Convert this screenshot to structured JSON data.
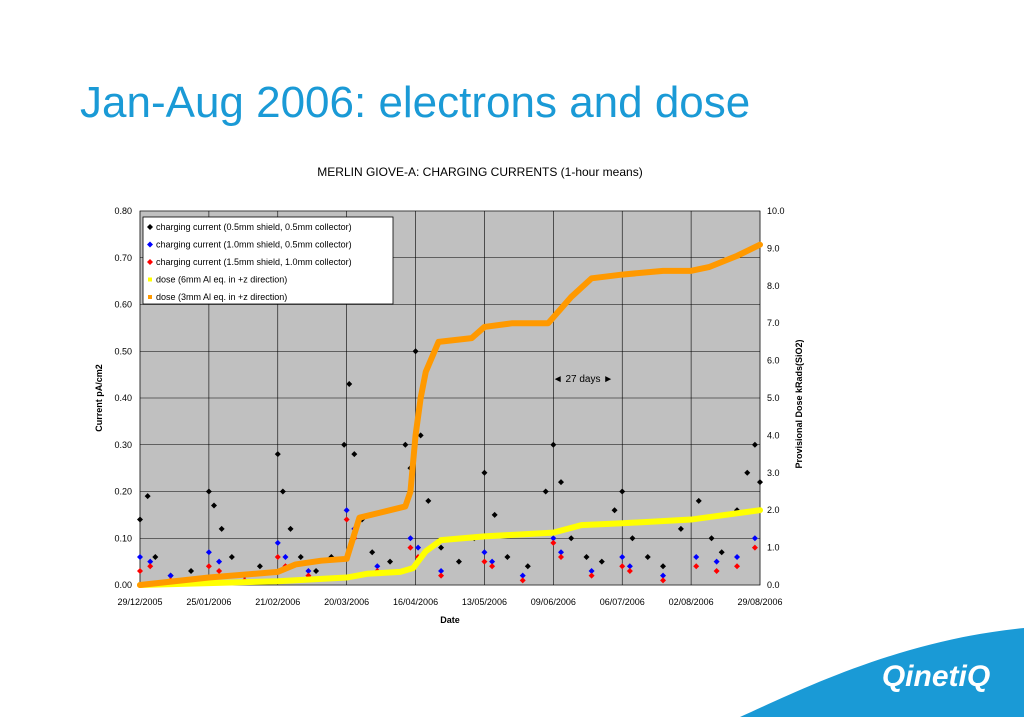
{
  "slide": {
    "title": "Jan-Aug 2006: electrons and dose",
    "logo_text": "QinetiQ",
    "logo_color": "#1a9ad6"
  },
  "chart_data": {
    "type": "scatter",
    "title": "MERLIN GIOVE-A: CHARGING CURRENTS (1-hour means)",
    "xlabel": "Date",
    "ylabel": "Current pA/cm2",
    "y2label": "Provisional Dose kRads(SiO2)",
    "x_range": [
      "2005-12-29",
      "2006-08-29"
    ],
    "x_ticks": [
      "29/12/2005",
      "25/01/2006",
      "21/02/2006",
      "20/03/2006",
      "16/04/2006",
      "13/05/2006",
      "09/06/2006",
      "06/07/2006",
      "02/08/2006",
      "29/08/2006"
    ],
    "ylim": [
      0,
      0.8
    ],
    "y_ticks": [
      "0.00",
      "0.10",
      "0.20",
      "0.30",
      "0.40",
      "0.50",
      "0.60",
      "0.70",
      "0.80"
    ],
    "y2lim": [
      0,
      10
    ],
    "y2_ticks": [
      "0.0",
      "1.0",
      "2.0",
      "3.0",
      "4.0",
      "5.0",
      "6.0",
      "7.0",
      "8.0",
      "9.0",
      "10.0"
    ],
    "grid": true,
    "plot_background": "#c0c0c0",
    "legend_position": "top-left",
    "annotation": "◄ 27 days ►",
    "series": [
      {
        "name": "charging current (0.5mm shield, 0.5mm collector)",
        "axis": "left",
        "color": "#000000",
        "marker": "diamond",
        "x": [
          "2005-12-29",
          "2006-01-01",
          "2006-01-04",
          "2006-01-10",
          "2006-01-18",
          "2006-01-25",
          "2006-01-27",
          "2006-01-30",
          "2006-02-03",
          "2006-02-08",
          "2006-02-14",
          "2006-02-21",
          "2006-02-23",
          "2006-02-26",
          "2006-03-02",
          "2006-03-08",
          "2006-03-14",
          "2006-03-19",
          "2006-03-21",
          "2006-03-23",
          "2006-03-26",
          "2006-03-30",
          "2006-04-06",
          "2006-04-12",
          "2006-04-14",
          "2006-04-16",
          "2006-04-18",
          "2006-04-21",
          "2006-04-26",
          "2006-05-03",
          "2006-05-09",
          "2006-05-13",
          "2006-05-17",
          "2006-05-22",
          "2006-05-30",
          "2006-06-06",
          "2006-06-09",
          "2006-06-12",
          "2006-06-16",
          "2006-06-22",
          "2006-06-28",
          "2006-07-03",
          "2006-07-06",
          "2006-07-10",
          "2006-07-16",
          "2006-07-22",
          "2006-07-29",
          "2006-08-02",
          "2006-08-05",
          "2006-08-10",
          "2006-08-14",
          "2006-08-20",
          "2006-08-24",
          "2006-08-27",
          "2006-08-29"
        ],
        "y": [
          0.14,
          0.19,
          0.06,
          0.02,
          0.03,
          0.2,
          0.17,
          0.12,
          0.06,
          0.02,
          0.04,
          0.28,
          0.2,
          0.12,
          0.06,
          0.03,
          0.06,
          0.3,
          0.43,
          0.28,
          0.14,
          0.07,
          0.05,
          0.3,
          0.25,
          0.5,
          0.32,
          0.18,
          0.08,
          0.05,
          0.1,
          0.24,
          0.15,
          0.06,
          0.04,
          0.2,
          0.3,
          0.22,
          0.1,
          0.06,
          0.05,
          0.16,
          0.2,
          0.1,
          0.06,
          0.04,
          0.12,
          0.14,
          0.18,
          0.1,
          0.07,
          0.16,
          0.24,
          0.3,
          0.22
        ]
      },
      {
        "name": "charging current (1.0mm shield, 0.5mm collector)",
        "axis": "left",
        "color": "#0000ff",
        "marker": "diamond",
        "x": [
          "2005-12-29",
          "2006-01-02",
          "2006-01-10",
          "2006-01-25",
          "2006-01-29",
          "2006-02-08",
          "2006-02-21",
          "2006-02-24",
          "2006-03-05",
          "2006-03-20",
          "2006-03-23",
          "2006-04-01",
          "2006-04-14",
          "2006-04-17",
          "2006-04-26",
          "2006-05-13",
          "2006-05-16",
          "2006-05-28",
          "2006-06-09",
          "2006-06-12",
          "2006-06-24",
          "2006-07-06",
          "2006-07-09",
          "2006-07-22",
          "2006-08-04",
          "2006-08-12",
          "2006-08-20",
          "2006-08-27"
        ],
        "y": [
          0.06,
          0.05,
          0.02,
          0.07,
          0.05,
          0.02,
          0.09,
          0.06,
          0.03,
          0.16,
          0.12,
          0.04,
          0.1,
          0.08,
          0.03,
          0.07,
          0.05,
          0.02,
          0.1,
          0.07,
          0.03,
          0.06,
          0.04,
          0.02,
          0.06,
          0.05,
          0.06,
          0.1
        ]
      },
      {
        "name": "charging current (1.5mm shield, 1.0mm collector)",
        "axis": "left",
        "color": "#ff0000",
        "marker": "diamond",
        "x": [
          "2005-12-29",
          "2006-01-02",
          "2006-01-10",
          "2006-01-25",
          "2006-01-29",
          "2006-02-08",
          "2006-02-21",
          "2006-02-24",
          "2006-03-05",
          "2006-03-20",
          "2006-03-23",
          "2006-04-01",
          "2006-04-14",
          "2006-04-17",
          "2006-04-26",
          "2006-05-13",
          "2006-05-16",
          "2006-05-28",
          "2006-06-09",
          "2006-06-12",
          "2006-06-24",
          "2006-07-06",
          "2006-07-09",
          "2006-07-22",
          "2006-08-04",
          "2006-08-12",
          "2006-08-20",
          "2006-08-27"
        ],
        "y": [
          0.03,
          0.04,
          0.01,
          0.04,
          0.03,
          0.01,
          0.06,
          0.04,
          0.02,
          0.14,
          0.1,
          0.03,
          0.08,
          0.06,
          0.02,
          0.05,
          0.04,
          0.01,
          0.09,
          0.06,
          0.02,
          0.04,
          0.03,
          0.01,
          0.04,
          0.03,
          0.04,
          0.08
        ]
      },
      {
        "name": "dose (6mm Al eq. in +z direction)",
        "axis": "right",
        "color": "#ffff00",
        "marker": "square",
        "x": [
          "2005-12-29",
          "2006-01-25",
          "2006-02-21",
          "2006-03-20",
          "2006-03-28",
          "2006-04-10",
          "2006-04-15",
          "2006-04-20",
          "2006-04-26",
          "2006-05-13",
          "2006-06-09",
          "2006-06-20",
          "2006-07-06",
          "2006-08-02",
          "2006-08-29"
        ],
        "y": [
          0.0,
          0.05,
          0.1,
          0.2,
          0.3,
          0.35,
          0.45,
          0.9,
          1.2,
          1.3,
          1.4,
          1.6,
          1.65,
          1.75,
          2.0
        ]
      },
      {
        "name": "dose (3mm Al eq. in +z direction)",
        "axis": "right",
        "color": "#ff9900",
        "marker": "square",
        "x": [
          "2005-12-29",
          "2006-01-25",
          "2006-02-21",
          "2006-02-28",
          "2006-03-10",
          "2006-03-20",
          "2006-03-25",
          "2006-04-12",
          "2006-04-14",
          "2006-04-16",
          "2006-04-18",
          "2006-04-20",
          "2006-04-25",
          "2006-05-08",
          "2006-05-13",
          "2006-05-24",
          "2006-06-07",
          "2006-06-16",
          "2006-06-24",
          "2006-07-06",
          "2006-07-22",
          "2006-08-02",
          "2006-08-09",
          "2006-08-20",
          "2006-08-29"
        ],
        "y": [
          0.0,
          0.2,
          0.35,
          0.55,
          0.65,
          0.7,
          1.8,
          2.1,
          2.5,
          4.0,
          5.0,
          5.7,
          6.5,
          6.6,
          6.9,
          7.0,
          7.0,
          7.7,
          8.2,
          8.3,
          8.4,
          8.4,
          8.5,
          8.8,
          9.1
        ]
      }
    ]
  }
}
